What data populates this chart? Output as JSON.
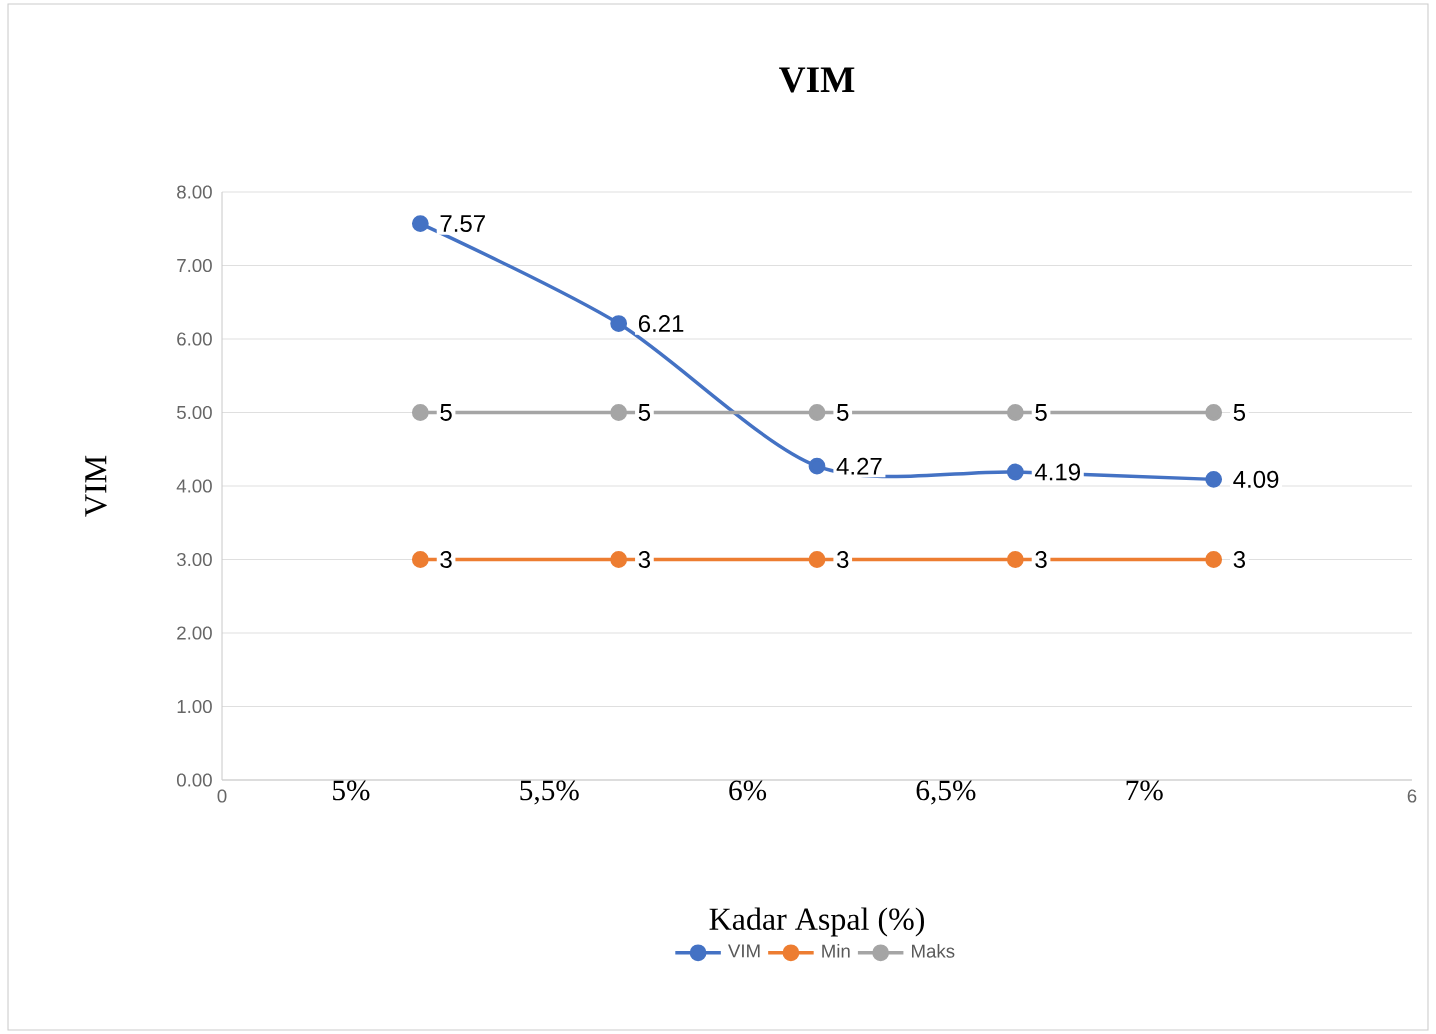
{
  "chart_data": {
    "type": "line",
    "title": "VIM",
    "xlabel": "Kadar Aspal (%)",
    "ylabel": "VIM",
    "x": [
      1,
      2,
      3,
      4,
      5
    ],
    "series": [
      {
        "name": "VIM",
        "color": "#4472c4",
        "values": [
          7.57,
          6.21,
          4.27,
          4.19,
          4.09
        ]
      },
      {
        "name": "Min",
        "color": "#ed7d31",
        "values": [
          3,
          3,
          3,
          3,
          3
        ]
      },
      {
        "name": "Maks",
        "color": "#a5a5a5",
        "values": [
          5,
          5,
          5,
          5,
          5
        ]
      }
    ],
    "xlim": [
      0,
      6
    ],
    "xticks": [
      0,
      6
    ],
    "ylim": [
      0,
      8
    ],
    "yticks": [
      {
        "value": 0,
        "label": "0.00"
      },
      {
        "value": 1,
        "label": "1.00"
      },
      {
        "value": 2,
        "label": "2.00"
      },
      {
        "value": 3,
        "label": "3.00"
      },
      {
        "value": 4,
        "label": "4.00"
      },
      {
        "value": 5,
        "label": "5.00"
      },
      {
        "value": 6,
        "label": "6.00"
      },
      {
        "value": 7,
        "label": "7.00"
      },
      {
        "value": 8,
        "label": "8.00"
      }
    ],
    "annotations": [
      "5%",
      "5,5%",
      "6%",
      "6,5%",
      "7%"
    ],
    "grid": "y",
    "legend": "bottom",
    "marker": "circle",
    "line_style": "solid",
    "data_labels": true
  }
}
